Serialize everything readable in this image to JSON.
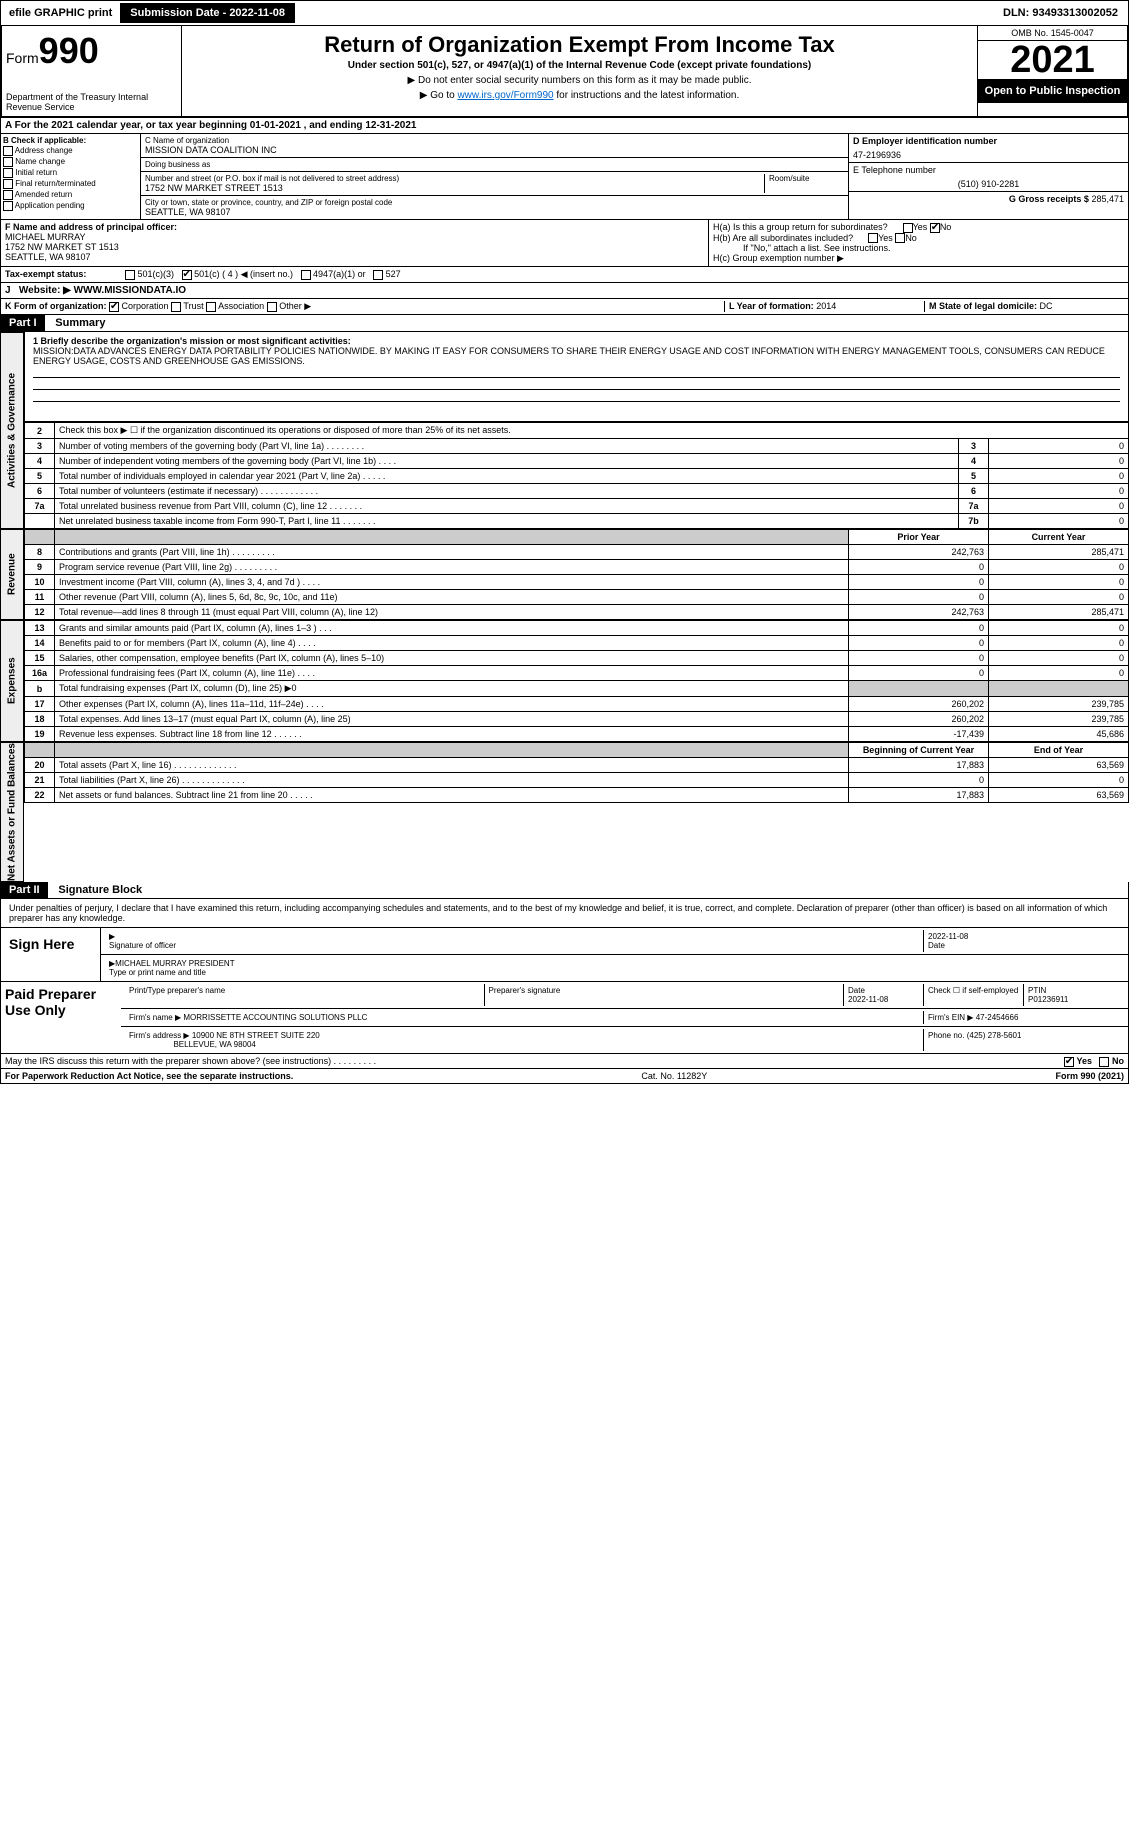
{
  "topbar": {
    "efile": "efile GRAPHIC print",
    "submission": "Submission Date - 2022-11-08",
    "dln": "DLN: 93493313002052"
  },
  "header": {
    "form_prefix": "Form",
    "form_num": "990",
    "dept": "Department of the Treasury Internal Revenue Service",
    "title": "Return of Organization Exempt From Income Tax",
    "subtitle": "Under section 501(c), 527, or 4947(a)(1) of the Internal Revenue Code (except private foundations)",
    "line1": "▶ Do not enter social security numbers on this form as it may be made public.",
    "line2_pre": "▶ Go to ",
    "line2_link": "www.irs.gov/Form990",
    "line2_post": " for instructions and the latest information.",
    "omb": "OMB No. 1545-0047",
    "year": "2021",
    "open": "Open to Public Inspection"
  },
  "row_a": "A For the 2021 calendar year, or tax year beginning 01-01-2021     , and ending 12-31-2021",
  "b": {
    "label": "B Check if applicable:",
    "items": [
      "Address change",
      "Name change",
      "Initial return",
      "Final return/terminated",
      "Amended return",
      "Application pending"
    ]
  },
  "c": {
    "name_label": "C Name of organization",
    "name": "MISSION DATA COALITION INC",
    "dba_label": "Doing business as",
    "dba": "",
    "addr_label": "Number and street (or P.O. box if mail is not delivered to street address)",
    "room_label": "Room/suite",
    "addr": "1752 NW MARKET STREET 1513",
    "city_label": "City or town, state or province, country, and ZIP or foreign postal code",
    "city": "SEATTLE, WA  98107"
  },
  "d": {
    "label": "D Employer identification number",
    "val": "47-2196936"
  },
  "e": {
    "label": "E Telephone number",
    "val": "(510) 910-2281"
  },
  "g": {
    "label": "G Gross receipts $",
    "val": "285,471"
  },
  "f": {
    "label": "F  Name and address of principal officer:",
    "name": "MICHAEL MURRAY",
    "addr1": "1752 NW MARKET ST 1513",
    "addr2": "SEATTLE, WA  98107"
  },
  "h": {
    "a": "H(a)  Is this a group return for subordinates?",
    "a_yes": "Yes",
    "a_no": "No",
    "b": "H(b)  Are all subordinates included?",
    "b_yes": "Yes",
    "b_no": "No",
    "b_note": "If \"No,\" attach a list. See instructions.",
    "c": "H(c)  Group exemption number ▶"
  },
  "i": {
    "label": "Tax-exempt status:",
    "o1": "501(c)(3)",
    "o2": "501(c) ( 4 ) ◀ (insert no.)",
    "o3": "4947(a)(1) or",
    "o4": "527"
  },
  "j": {
    "label": "J",
    "text": "Website: ▶",
    "val": "WWW.MISSIONDATA.IO"
  },
  "k": {
    "label": "K Form of organization:",
    "o1": "Corporation",
    "o2": "Trust",
    "o3": "Association",
    "o4": "Other ▶",
    "l_label": "L Year of formation:",
    "l_val": "2014",
    "m_label": "M State of legal domicile:",
    "m_val": "DC"
  },
  "part1": {
    "hdr": "Part I",
    "title": "Summary"
  },
  "mission": {
    "label": "1  Briefly describe the organization's mission or most significant activities:",
    "text": "MISSION:DATA ADVANCES ENERGY DATA PORTABILITY POLICIES NATIONWIDE. BY MAKING IT EASY FOR CONSUMERS TO SHARE THEIR ENERGY USAGE AND COST INFORMATION WITH ENERGY MANAGEMENT TOOLS, CONSUMERS CAN REDUCE ENERGY USAGE, COSTS AND GREENHOUSE GAS EMISSIONS."
  },
  "vlabels": {
    "gov": "Activities & Governance",
    "rev": "Revenue",
    "exp": "Expenses",
    "net": "Net Assets or Fund Balances"
  },
  "gov_lines": [
    {
      "n": "2",
      "t": "Check this box ▶ ☐  if the organization discontinued its operations or disposed of more than 25% of its net assets."
    },
    {
      "n": "3",
      "t": "Number of voting members of the governing body (Part VI, line 1a)   .    .    .    .    .    .    .    .",
      "k": "3",
      "v": "0"
    },
    {
      "n": "4",
      "t": "Number of independent voting members of the governing body (Part VI, line 1b)   .    .    .    .",
      "k": "4",
      "v": "0"
    },
    {
      "n": "5",
      "t": "Total number of individuals employed in calendar year 2021 (Part V, line 2a)   .    .    .    .    .",
      "k": "5",
      "v": "0"
    },
    {
      "n": "6",
      "t": "Total number of volunteers (estimate if necessary)   .    .    .    .    .    .    .    .    .    .    .    .",
      "k": "6",
      "v": "0"
    },
    {
      "n": "7a",
      "t": "Total unrelated business revenue from Part VIII, column (C), line 12   .    .    .    .    .    .    .",
      "k": "7a",
      "v": "0"
    },
    {
      "n": "",
      "t": "Net unrelated business taxable income from Form 990-T, Part I, line 11   .    .    .    .    .    .    .",
      "k": "7b",
      "v": "0"
    }
  ],
  "cols": {
    "prior": "Prior Year",
    "current": "Current Year"
  },
  "rev_lines": [
    {
      "n": "8",
      "t": "Contributions and grants (Part VIII, line 1h)   .    .    .    .    .    .    .    .    .",
      "p": "242,763",
      "c": "285,471"
    },
    {
      "n": "9",
      "t": "Program service revenue (Part VIII, line 2g)   .    .    .    .    .    .    .    .    .",
      "p": "0",
      "c": "0"
    },
    {
      "n": "10",
      "t": "Investment income (Part VIII, column (A), lines 3, 4, and 7d )   .    .    .    .",
      "p": "0",
      "c": "0"
    },
    {
      "n": "11",
      "t": "Other revenue (Part VIII, column (A), lines 5, 6d, 8c, 9c, 10c, and 11e)",
      "p": "0",
      "c": "0"
    },
    {
      "n": "12",
      "t": "Total revenue—add lines 8 through 11 (must equal Part VIII, column (A), line 12)",
      "p": "242,763",
      "c": "285,471"
    }
  ],
  "exp_lines": [
    {
      "n": "13",
      "t": "Grants and similar amounts paid (Part IX, column (A), lines 1–3 )   .    .    .",
      "p": "0",
      "c": "0"
    },
    {
      "n": "14",
      "t": "Benefits paid to or for members (Part IX, column (A), line 4)   .    .    .    .",
      "p": "0",
      "c": "0"
    },
    {
      "n": "15",
      "t": "Salaries, other compensation, employee benefits (Part IX, column (A), lines 5–10)",
      "p": "0",
      "c": "0"
    },
    {
      "n": "16a",
      "t": "Professional fundraising fees (Part IX, column (A), line 11e)   .    .    .    .",
      "p": "0",
      "c": "0"
    },
    {
      "n": "b",
      "t": "Total fundraising expenses (Part IX, column (D), line 25) ▶0",
      "p": "",
      "c": "",
      "shaded": true
    },
    {
      "n": "17",
      "t": "Other expenses (Part IX, column (A), lines 11a–11d, 11f–24e)   .    .    .    .",
      "p": "260,202",
      "c": "239,785"
    },
    {
      "n": "18",
      "t": "Total expenses. Add lines 13–17 (must equal Part IX, column (A), line 25)",
      "p": "260,202",
      "c": "239,785"
    },
    {
      "n": "19",
      "t": "Revenue less expenses. Subtract line 18 from line 12   .    .    .    .    .    .",
      "p": "-17,439",
      "c": "45,686"
    }
  ],
  "net_cols": {
    "begin": "Beginning of Current Year",
    "end": "End of Year"
  },
  "net_lines": [
    {
      "n": "20",
      "t": "Total assets (Part X, line 16)   .    .    .    .    .    .    .    .    .    .    .    .    .",
      "p": "17,883",
      "c": "63,569"
    },
    {
      "n": "21",
      "t": "Total liabilities (Part X, line 26)   .    .    .    .    .    .    .    .    .    .    .    .    .",
      "p": "0",
      "c": "0"
    },
    {
      "n": "22",
      "t": "Net assets or fund balances. Subtract line 21 from line 20   .    .    .    .    .",
      "p": "17,883",
      "c": "63,569"
    }
  ],
  "part2": {
    "hdr": "Part II",
    "title": "Signature Block"
  },
  "sig": {
    "intro": "Under penalties of perjury, I declare that I have examined this return, including accompanying schedules and statements, and to the best of my knowledge and belief, it is true, correct, and complete. Declaration of preparer (other than officer) is based on all information of which preparer has any knowledge.",
    "sign_here": "Sign Here",
    "sig_officer": "Signature of officer",
    "date": "Date",
    "date_val": "2022-11-08",
    "name": "MICHAEL MURRAY PRESIDENT",
    "name_label": "Type or print name and title"
  },
  "paid": {
    "label": "Paid Preparer Use Only",
    "print_label": "Print/Type preparer's name",
    "sig_label": "Preparer's signature",
    "date_label": "Date",
    "date_val": "2022-11-08",
    "check_label": "Check ☐ if self-employed",
    "ptin_label": "PTIN",
    "ptin": "P01236911",
    "firm_name_label": "Firm's name    ▶",
    "firm_name": "MORRISSETTE ACCOUNTING SOLUTIONS PLLC",
    "firm_ein_label": "Firm's EIN ▶",
    "firm_ein": "47-2454666",
    "firm_addr_label": "Firm's address ▶",
    "firm_addr1": "10900 NE 8TH STREET SUITE 220",
    "firm_addr2": "BELLEVUE, WA  98004",
    "phone_label": "Phone no.",
    "phone": "(425) 278-5601"
  },
  "discuss": {
    "text": "May the IRS discuss this return with the preparer shown above? (see instructions)   .    .    .    .    .    .    .    .    .",
    "yes": "Yes",
    "no": "No"
  },
  "footer": {
    "left": "For Paperwork Reduction Act Notice, see the separate instructions.",
    "mid": "Cat. No. 11282Y",
    "right": "Form 990 (2021)"
  }
}
